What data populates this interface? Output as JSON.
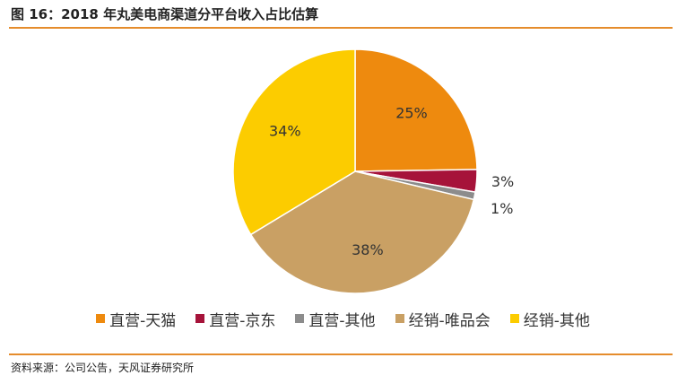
{
  "header": {
    "title": "图 16：2018 年丸美电商渠道分平台收入占比估算"
  },
  "footer": {
    "source": "资料来源：公司公告，天风证券研究所"
  },
  "colors": {
    "accent_rule": "#e58c2c"
  },
  "chart_data": {
    "type": "pie",
    "title": "",
    "legend_position": "bottom",
    "slices": [
      {
        "name": "直营-天猫",
        "value": 25,
        "label": "25%",
        "color": "#ee8a0e"
      },
      {
        "name": "直营-京东",
        "value": 3,
        "label": "3%",
        "color": "#a6133a"
      },
      {
        "name": "直营-其他",
        "value": 1,
        "label": "1%",
        "color": "#8c8c8c"
      },
      {
        "name": "经销-唯品会",
        "value": 38,
        "label": "38%",
        "color": "#c9a064"
      },
      {
        "name": "经销-其他",
        "value": 34,
        "label": "34%",
        "color": "#fccc00"
      }
    ]
  }
}
